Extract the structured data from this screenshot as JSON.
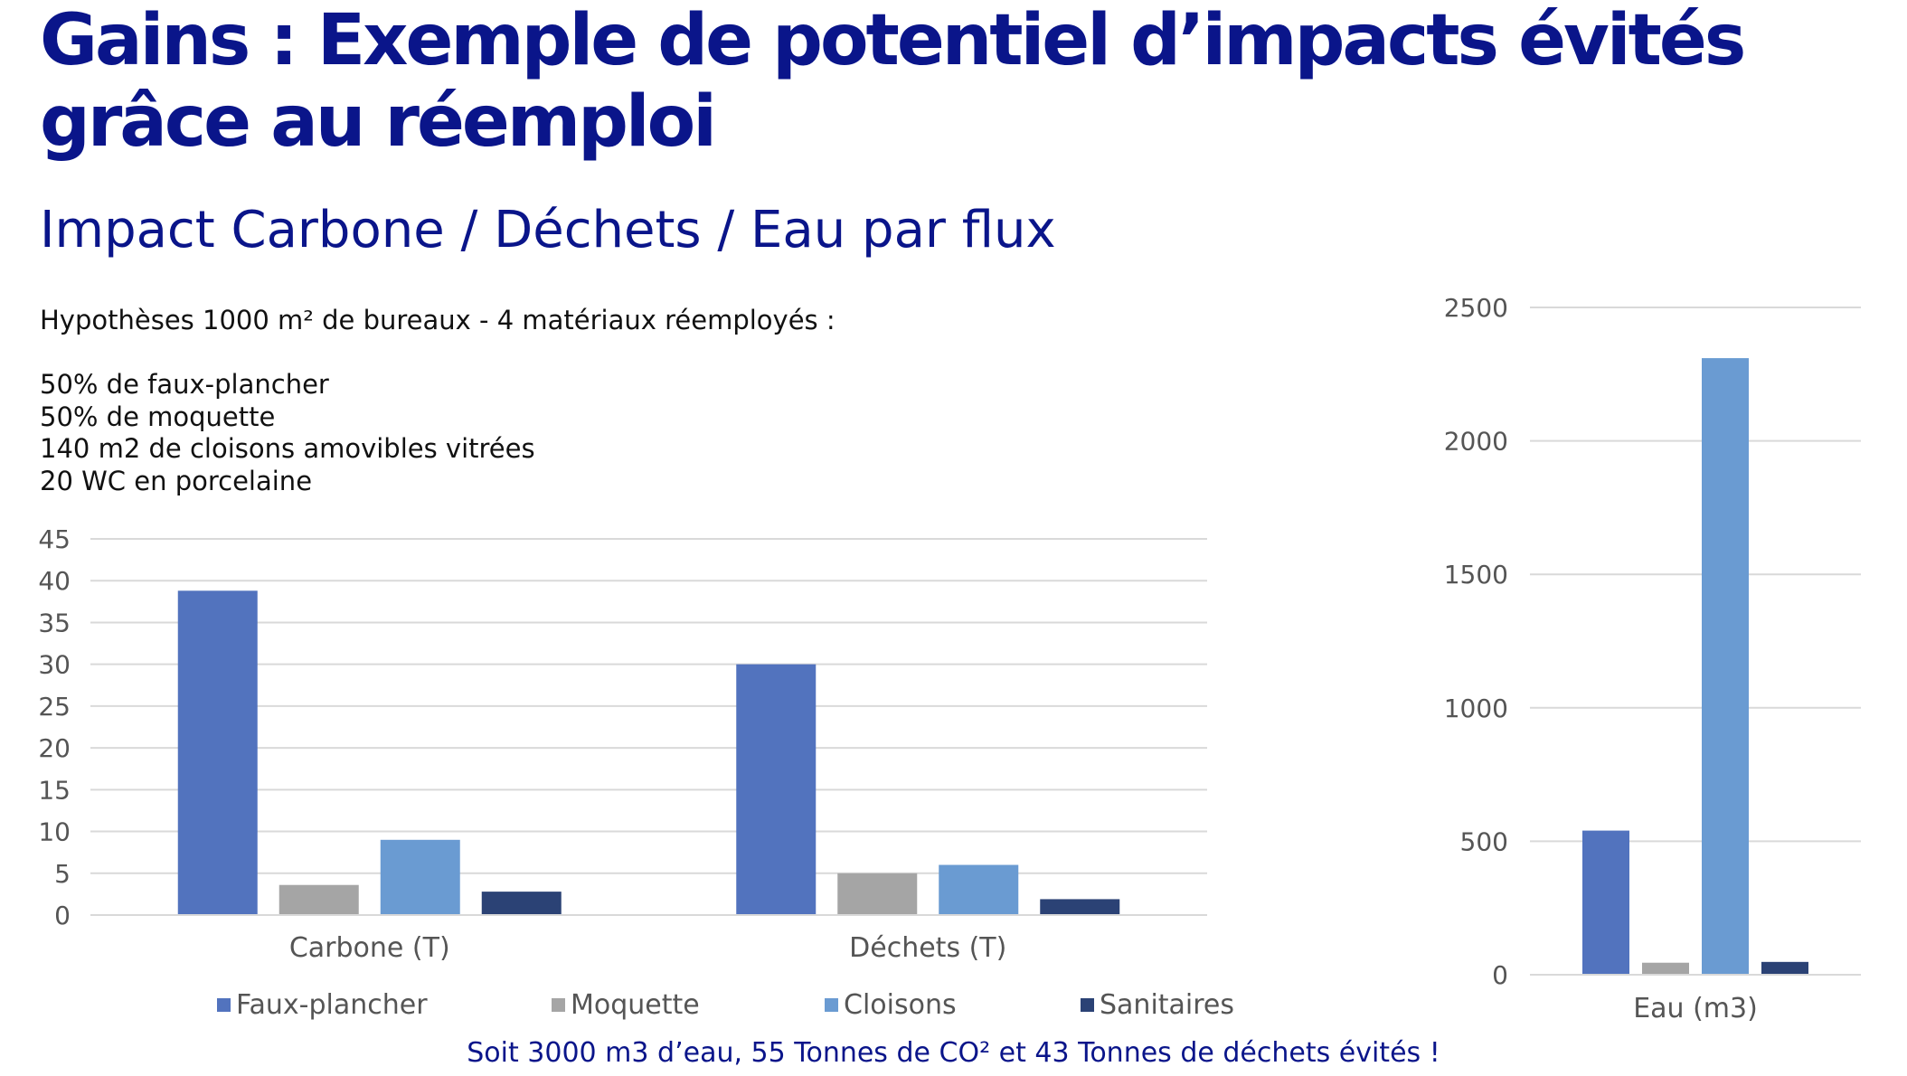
{
  "title": "Gains : Exemple de potentiel d’impacts évités grâce au réemploi",
  "subtitle": "Impact Carbone / Déchets / Eau par flux",
  "hypotheses": {
    "title": "Hypothèses 1000 m² de bureaux - 4 matériaux réemployés :",
    "items": [
      "50% de faux-plancher",
      "50% de moquette",
      "140 m2 de cloisons amovibles vitrées",
      "20 WC en porcelaine"
    ]
  },
  "legend": [
    "Faux-plancher",
    "Moquette",
    "Cloisons",
    "Sanitaires"
  ],
  "colors": {
    "title": "#0a158a",
    "Faux-plancher": "#5273be",
    "Moquette": "#a5a5a5",
    "Cloisons": "#6a9bd2",
    "Sanitaires": "#2b4275",
    "grid": "#d9d9d9"
  },
  "footer": "Soit 3000 m3 d’eau, 55 Tonnes de CO² et 43 Tonnes de déchets évités !",
  "chart_data": [
    {
      "type": "bar",
      "categories": [
        "Carbone (T)",
        "Déchets (T)"
      ],
      "series": [
        {
          "name": "Faux-plancher",
          "values": [
            38.8,
            30
          ]
        },
        {
          "name": "Moquette",
          "values": [
            3.6,
            5
          ]
        },
        {
          "name": "Cloisons",
          "values": [
            9,
            6
          ]
        },
        {
          "name": "Sanitaires",
          "values": [
            2.8,
            1.9
          ]
        }
      ],
      "ylim": [
        0,
        45
      ],
      "yticks": [
        0,
        5,
        10,
        15,
        20,
        25,
        30,
        35,
        40,
        45
      ],
      "grid": true,
      "legend_position": "bottom"
    },
    {
      "type": "bar",
      "categories": [
        "Eau (m3)"
      ],
      "series": [
        {
          "name": "Faux-plancher",
          "values": [
            540
          ]
        },
        {
          "name": "Moquette",
          "values": [
            45
          ]
        },
        {
          "name": "Cloisons",
          "values": [
            2310
          ]
        },
        {
          "name": "Sanitaires",
          "values": [
            48
          ]
        }
      ],
      "ylim": [
        0,
        2500
      ],
      "yticks": [
        0,
        500,
        1000,
        1500,
        2000,
        2500
      ],
      "grid": true
    }
  ]
}
